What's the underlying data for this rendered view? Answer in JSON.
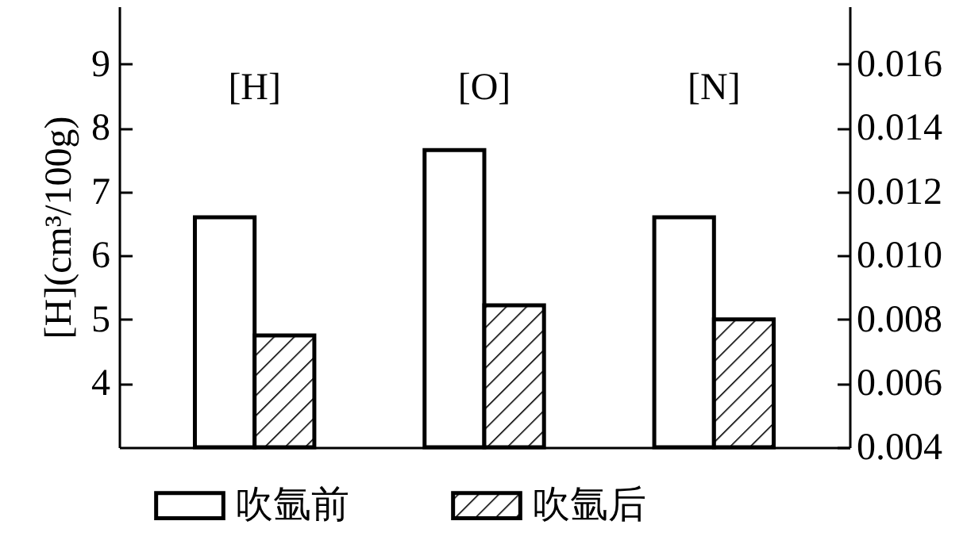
{
  "chart_data": {
    "type": "bar",
    "ylabel": "[H](cm³/100g)",
    "categories": [
      "[H]",
      "[O]",
      "[N]"
    ],
    "series": [
      {
        "name": "吹氩前",
        "color": "#ffffff",
        "values": [
          6.6,
          7.65,
          6.6
        ]
      },
      {
        "name": "吹氩后",
        "color": "#000000",
        "values": [
          4.75,
          5.22,
          5.0
        ]
      }
    ],
    "ylim": [
      3,
      9.9
    ],
    "yticks": [
      4,
      5,
      6,
      7,
      8,
      9
    ],
    "y2lim": [
      0.004,
      0.0178
    ],
    "y2ticks": [
      {
        "value": 0.004,
        "label": "0.004"
      },
      {
        "value": 0.006,
        "label": "0.006"
      },
      {
        "value": 0.008,
        "label": "0.008"
      },
      {
        "value": 0.01,
        "label": "0.010"
      },
      {
        "value": 0.012,
        "label": "0.012"
      },
      {
        "value": 0.014,
        "label": "0.014"
      },
      {
        "value": 0.016,
        "label": "0.016"
      }
    ],
    "grid": false,
    "legend": "bottom"
  }
}
